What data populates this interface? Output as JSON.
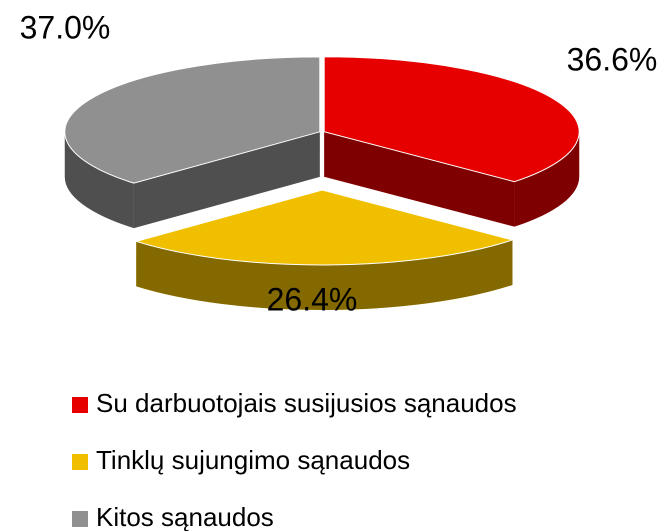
{
  "chart_data": {
    "type": "pie",
    "categories": [
      "Su darbuotojais susijusios sąnaudos",
      "Tinklų sujungimo sąnaudos",
      "Kitos sąnaudos"
    ],
    "values": [
      36.6,
      26.4,
      37.0
    ],
    "value_labels": [
      "36.6%",
      "26.4%",
      "37.0%"
    ],
    "colors": [
      "#e60000",
      "#f0c000",
      "#909090"
    ],
    "legend": "bottom"
  }
}
